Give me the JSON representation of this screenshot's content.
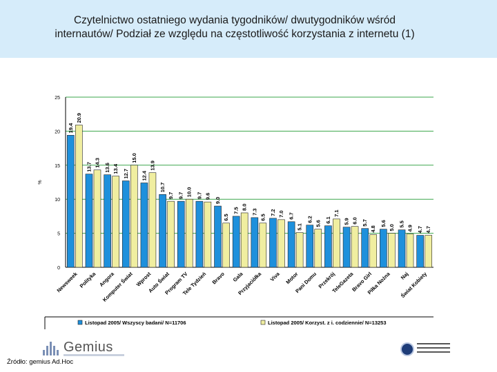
{
  "header": {
    "title_line1": "Czytelnictwo ostatniego wydania tygodników/ dwutygodników wśród",
    "title_line2": "internautów/ Podział ze względu na częstotliwość korzystania z internetu (1)"
  },
  "footer": {
    "source": "Źródło: gemius Ad.Hoc",
    "gemius_logo_text": "Gemius"
  },
  "chart_data": {
    "type": "bar",
    "ylabel": "%",
    "xlabel": "",
    "ylim": [
      0,
      25
    ],
    "yticks": [
      0,
      5,
      10,
      15,
      20,
      25
    ],
    "grid": true,
    "legend_position": "bottom",
    "categories": [
      "Newsweek",
      "Polityka",
      "Angora",
      "Komputer Świat",
      "Wprost",
      "Auto Świat",
      "Program TV",
      "Tele Tydzień",
      "Bravo",
      "Gala",
      "Przyjaciółka",
      "Viva",
      "Motor",
      "Pani Domu",
      "Przekrój",
      "TeleGazeta",
      "Bravo Girl",
      "Piłka Nożna",
      "Naj",
      "Świat Kobiety"
    ],
    "series": [
      {
        "name": "Listopad 2005/ Wszyscy badani/ N=11706",
        "color": "#1e90dc",
        "values": [
          19.4,
          13.7,
          13.6,
          12.7,
          12.4,
          10.7,
          9.7,
          9.7,
          9.0,
          7.5,
          7.3,
          7.2,
          6.7,
          6.2,
          6.1,
          5.9,
          5.7,
          5.6,
          5.5,
          4.7
        ]
      },
      {
        "name": "Listopad 2005/ Korzyst. z i. codziennie/ N=13253",
        "color": "#f0eea0",
        "values": [
          20.9,
          14.3,
          13.4,
          15.0,
          13.9,
          9.7,
          10.0,
          9.6,
          6.5,
          8.0,
          6.5,
          7.0,
          5.1,
          5.6,
          7.1,
          6.0,
          4.8,
          5.0,
          4.9,
          4.7
        ]
      }
    ]
  }
}
